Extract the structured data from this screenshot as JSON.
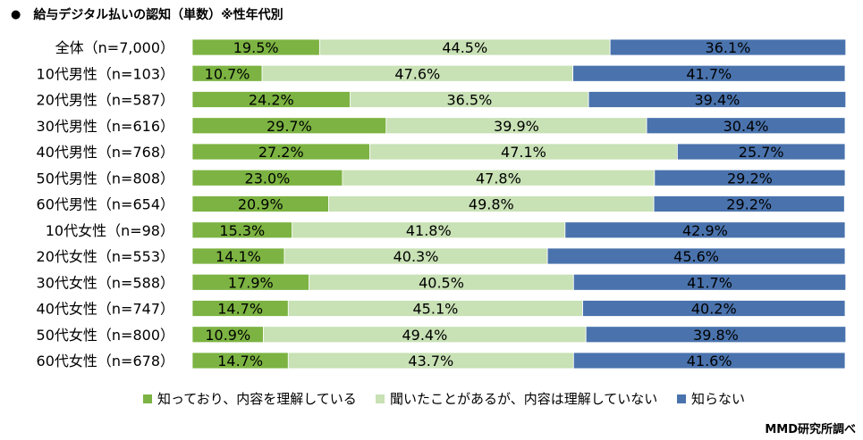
{
  "title": "給与デジタル払いの認知（単数）※性年代別",
  "title_bullet": "●",
  "credit": "MMD研究所調べ",
  "colors": {
    "known": "#7cb342",
    "heard": "#c8e1b5",
    "unknown": "#4a73ad"
  },
  "chart_data": {
    "type": "bar",
    "orientation": "horizontal",
    "stacked": true,
    "unit": "%",
    "title": "給与デジタル払いの認知（単数）※性年代別",
    "legend_position": "bottom",
    "categories": [
      "全体（n=7,000）",
      "10代男性（n=103）",
      "20代男性（n=587）",
      "30代男性（n=616）",
      "40代男性（n=768）",
      "50代男性（n=808）",
      "60代男性（n=654）",
      "10代女性（n=98）",
      "20代女性（n=553）",
      "30代女性（n=588）",
      "40代女性（n=747）",
      "50代女性（n=800）",
      "60代女性（n=678）"
    ],
    "series": [
      {
        "name": "知っており、内容を理解している",
        "color_key": "known",
        "values": [
          19.5,
          10.7,
          24.2,
          29.7,
          27.2,
          23.0,
          20.9,
          15.3,
          14.1,
          17.9,
          14.7,
          10.9,
          14.7
        ],
        "labels": [
          "19.5%",
          "10.7%",
          "24.2%",
          "29.7%",
          "27.2%",
          "23.0%",
          "20.9%",
          "15.3%",
          "14.1%",
          "17.9%",
          "14.7%",
          "10.9%",
          "14.7%"
        ]
      },
      {
        "name": "聞いたことがあるが、内容は理解していない",
        "color_key": "heard",
        "values": [
          44.5,
          47.6,
          36.5,
          39.9,
          47.1,
          47.8,
          49.8,
          41.8,
          40.3,
          40.5,
          45.1,
          49.4,
          43.7
        ],
        "labels": [
          "44.5%",
          "47.6%",
          "36.5%",
          "39.9%",
          "47.1%",
          "47.8%",
          "49.8%",
          "41.8%",
          "40.3%",
          "40.5%",
          "45.1%",
          "49.4%",
          "43.7%"
        ]
      },
      {
        "name": "知らない",
        "color_key": "unknown",
        "values": [
          36.1,
          41.7,
          39.4,
          30.4,
          25.7,
          29.2,
          29.2,
          42.9,
          45.6,
          41.7,
          40.2,
          39.8,
          41.6
        ],
        "labels": [
          "36.1%",
          "41.7%",
          "39.4%",
          "30.4%",
          "25.7%",
          "29.2%",
          "29.2%",
          "42.9%",
          "45.6%",
          "41.7%",
          "40.2%",
          "39.8%",
          "41.6%"
        ]
      }
    ]
  }
}
